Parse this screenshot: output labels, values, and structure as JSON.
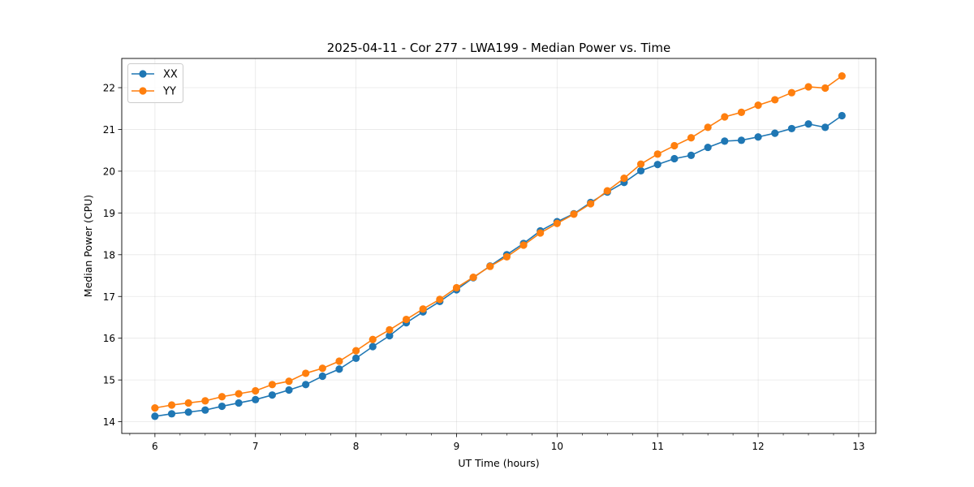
{
  "chart_data": {
    "type": "line",
    "title": "2025-04-11 - Cor 277 - LWA199 - Median Power vs. Time",
    "xlabel": "UT Time (hours)",
    "ylabel": "Median Power (CPU)",
    "xlim": [
      5.67,
      13.17
    ],
    "ylim": [
      13.72,
      22.7
    ],
    "xticks": [
      "6",
      "7",
      "8",
      "9",
      "10",
      "11",
      "12",
      "13"
    ],
    "yticks": [
      "14",
      "15",
      "16",
      "17",
      "18",
      "19",
      "20",
      "21",
      "22"
    ],
    "grid": true,
    "legend": "top-left",
    "x": [
      6.0,
      6.1667,
      6.3333,
      6.5,
      6.6667,
      6.8333,
      7.0,
      7.1667,
      7.3333,
      7.5,
      7.6667,
      7.8333,
      8.0,
      8.1667,
      8.3333,
      8.5,
      8.6667,
      8.8333,
      9.0,
      9.1667,
      9.3333,
      9.5,
      9.6667,
      9.8333,
      10.0,
      10.1667,
      10.3333,
      10.5,
      10.6667,
      10.8333,
      11.0,
      11.1667,
      11.3333,
      11.5,
      11.6667,
      11.8333,
      12.0,
      12.1667,
      12.3333,
      12.5,
      12.6667,
      12.8333
    ],
    "series": [
      {
        "name": "XX",
        "color": "#1f77b4",
        "values": [
          14.13,
          14.19,
          14.23,
          14.28,
          14.37,
          14.45,
          14.53,
          14.64,
          14.76,
          14.89,
          15.09,
          15.26,
          15.52,
          15.8,
          16.06,
          16.37,
          16.63,
          16.88,
          17.16,
          17.45,
          17.73,
          18.0,
          18.27,
          18.57,
          18.79,
          18.98,
          19.25,
          19.5,
          19.73,
          20.01,
          20.16,
          20.3,
          20.38,
          20.57,
          20.72,
          20.74,
          20.82,
          20.91,
          21.02,
          21.13,
          21.05,
          21.33
        ]
      },
      {
        "name": "YY",
        "color": "#ff7f0e",
        "values": [
          14.33,
          14.4,
          14.45,
          14.5,
          14.6,
          14.67,
          14.74,
          14.89,
          14.97,
          15.16,
          15.28,
          15.45,
          15.7,
          15.97,
          16.2,
          16.45,
          16.7,
          16.93,
          17.21,
          17.46,
          17.72,
          17.95,
          18.23,
          18.52,
          18.75,
          18.97,
          19.22,
          19.53,
          19.83,
          20.17,
          20.41,
          20.61,
          20.8,
          21.05,
          21.3,
          21.41,
          21.58,
          21.71,
          21.88,
          22.02,
          21.99,
          22.28
        ]
      }
    ]
  }
}
